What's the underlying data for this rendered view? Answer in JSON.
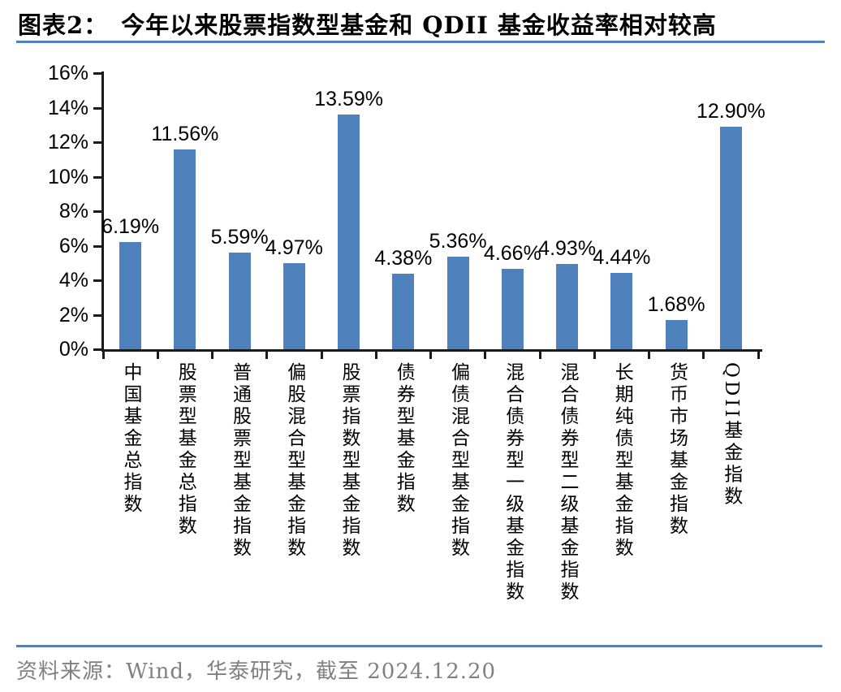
{
  "header": {
    "label": "图表2：",
    "title": "今年以来股票指数型基金和 QDII 基金收益率相对较高"
  },
  "footer": {
    "source": "资料来源：Wind，华泰研究，截至 2024.12.20"
  },
  "colors": {
    "accent_blue": "#4F81BD",
    "divider_blue": "#5B7FAD",
    "footer_gray": "#808080",
    "axis_black": "#1a1a1a"
  },
  "chart_data": {
    "type": "bar",
    "title": "今年以来股票指数型基金和 QDII 基金收益率相对较高",
    "categories": [
      "中国基金总指数",
      "股票型基金总指数",
      "普通股票型基金指数",
      "偏股混合型基金指数",
      "股票指数型基金指数",
      "债券型基金指数",
      "偏债混合型基金指数",
      "混合债券型一级基金指数",
      "混合债券型二级基金指数",
      "长期纯债型基金指数",
      "货币市场基金指数",
      "QDII基金指数"
    ],
    "values": [
      6.19,
      11.56,
      5.59,
      4.97,
      13.59,
      4.38,
      5.36,
      4.66,
      4.93,
      4.44,
      1.68,
      12.9
    ],
    "data_labels": [
      "6.19%",
      "11.56%",
      "5.59%",
      "4.97%",
      "13.59%",
      "4.38%",
      "5.36%",
      "4.66%",
      "4.93%",
      "4.44%",
      "1.68%",
      "12.90%"
    ],
    "xlabel": "",
    "ylabel": "",
    "ylim": [
      0,
      16
    ],
    "ytick_values": [
      0,
      2,
      4,
      6,
      8,
      10,
      12,
      14,
      16
    ],
    "ytick_labels": [
      "0%",
      "2%",
      "4%",
      "6%",
      "8%",
      "10%",
      "12%",
      "14%",
      "16%"
    ],
    "grid": false,
    "legend": "none",
    "bar_color": "#4F81BD"
  }
}
